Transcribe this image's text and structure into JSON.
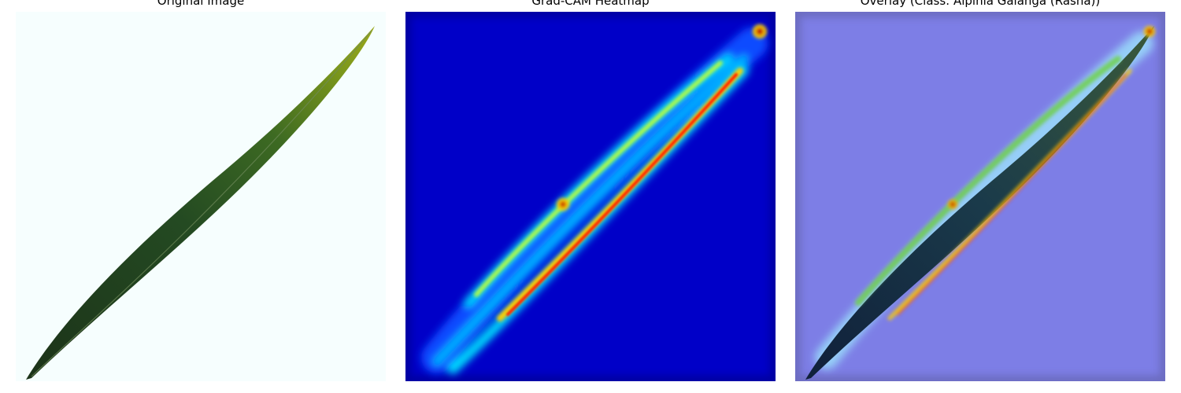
{
  "panels": {
    "original": {
      "title": "Original Image"
    },
    "heatmap": {
      "title": "Grad-CAM Heatmap"
    },
    "overlay": {
      "title": "Overlay (Class: Alpinia Galanga (Rasna))"
    }
  },
  "colors": {
    "image_background": "#f6fefe",
    "leaf_dark": "#1f3a1c",
    "leaf_light": "#7f9a1c",
    "heatmap_background": "#0000c8",
    "overlay_background": "#7d7ee6"
  },
  "icons": [
    "leaf-photo",
    "gradcam-heatmap",
    "overlay-image"
  ]
}
